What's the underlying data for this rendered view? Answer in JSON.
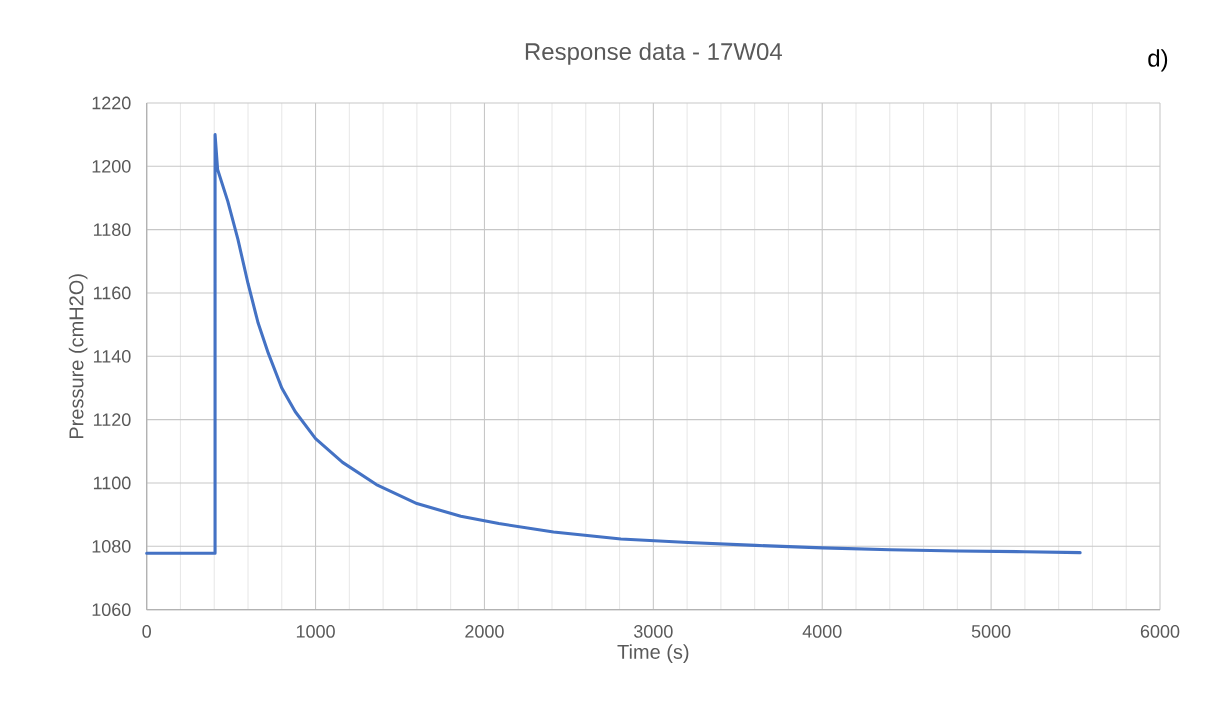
{
  "chart_data": {
    "type": "line",
    "title": "Response data - 17W04",
    "xlabel": "Time (s)",
    "ylabel": "Pressure (cmH2O)",
    "annotations": [
      "d)"
    ],
    "x": [
      0,
      400,
      405,
      405,
      420,
      480,
      540,
      600,
      660,
      720,
      800,
      880,
      1000,
      1160,
      1360,
      1600,
      1860,
      2085,
      2409,
      2808,
      3206,
      3605,
      4003,
      4402,
      4800,
      5198,
      5527
    ],
    "series": [
      {
        "color": "#4472c4",
        "values": [
          1077.8,
          1077.8,
          1077.8,
          1210,
          1199,
          1189,
          1177,
          1163,
          1150.5,
          1141,
          1130,
          1122.5,
          1114,
          1106.5,
          1099.5,
          1093.5,
          1089.5,
          1087.2,
          1084.5,
          1082.3,
          1081.2,
          1080.3,
          1079.5,
          1078.9,
          1078.5,
          1078.3,
          1078
        ]
      }
    ],
    "xlim": [
      0,
      6000
    ],
    "ylim": [
      1060,
      1220
    ],
    "xticks": [
      0,
      1000,
      2000,
      3000,
      4000,
      5000,
      6000
    ],
    "yticks": [
      1060,
      1080,
      1100,
      1120,
      1140,
      1160,
      1180,
      1200,
      1220
    ],
    "grid": true,
    "marker": "none",
    "line_style": "solid"
  }
}
